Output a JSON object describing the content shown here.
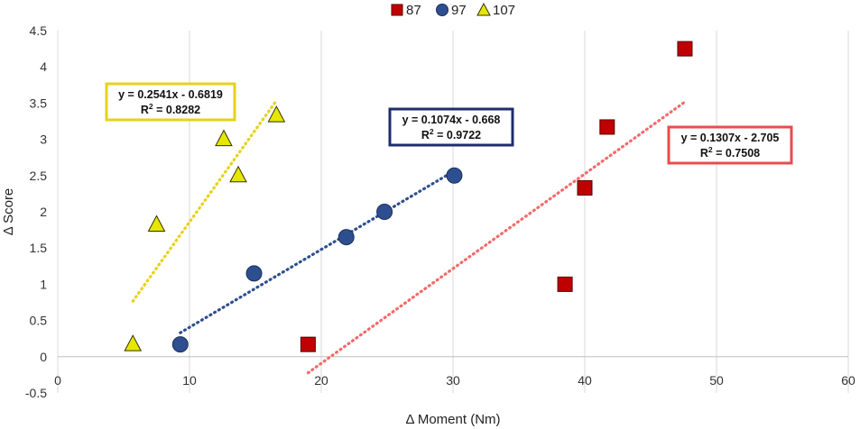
{
  "chart_data": {
    "type": "scatter",
    "title": "",
    "xlabel": "Δ Moment (Nm)",
    "ylabel": "Δ Score",
    "xlim": [
      0,
      60
    ],
    "ylim": [
      -0.5,
      4.5
    ],
    "x_ticks": [
      0,
      10,
      20,
      30,
      40,
      50,
      60
    ],
    "y_ticks": [
      -0.5,
      0,
      0.5,
      1,
      1.5,
      2,
      2.5,
      3,
      3.5,
      4,
      4.5
    ],
    "grid": "vertical",
    "legend_position": "top-center",
    "series": [
      {
        "name": "87",
        "marker": "square",
        "color": "#c00000",
        "points": [
          [
            19,
            0.17
          ],
          [
            38.5,
            1.0
          ],
          [
            40,
            2.33
          ],
          [
            41.7,
            3.17
          ],
          [
            47.6,
            4.25
          ]
        ],
        "trendline": {
          "slope": 0.1307,
          "intercept": -2.705,
          "x_range": [
            19,
            47.6
          ],
          "color": "#f26b6b",
          "equation": "y = 0.1307x - 2.705",
          "r2_label": "R",
          "r2_sup": "2",
          "r2_value": " = 0.7508",
          "box_color": "#e84c4c"
        }
      },
      {
        "name": "97",
        "marker": "circle",
        "color": "#2e4f8f",
        "points": [
          [
            9.3,
            0.17
          ],
          [
            14.9,
            1.15
          ],
          [
            21.9,
            1.65
          ],
          [
            24.8,
            2.0
          ],
          [
            30.1,
            2.5
          ]
        ],
        "trendline": {
          "slope": 0.1074,
          "intercept": -0.668,
          "x_range": [
            9.3,
            30.1
          ],
          "color": "#2e4f8f",
          "equation": "y = 0.1074x - 0.668",
          "r2_label": "R",
          "r2_sup": "2",
          "r2_value": " = 0.9722",
          "box_color": "#1f2d6b"
        }
      },
      {
        "name": "107",
        "marker": "triangle",
        "color": "#e6e600",
        "points": [
          [
            5.7,
            0.17
          ],
          [
            7.5,
            1.82
          ],
          [
            12.6,
            3.0
          ],
          [
            13.7,
            2.5
          ],
          [
            16.6,
            3.33
          ]
        ],
        "trendline": {
          "slope": 0.2541,
          "intercept": -0.6819,
          "x_range": [
            5.7,
            16.6
          ],
          "color": "#e6d21a",
          "equation": "y = 0.2541x - 0.6819",
          "r2_label": "R",
          "r2_sup": "2",
          "r2_value": " = 0.8282",
          "box_color": "#e6d21a"
        }
      }
    ]
  }
}
